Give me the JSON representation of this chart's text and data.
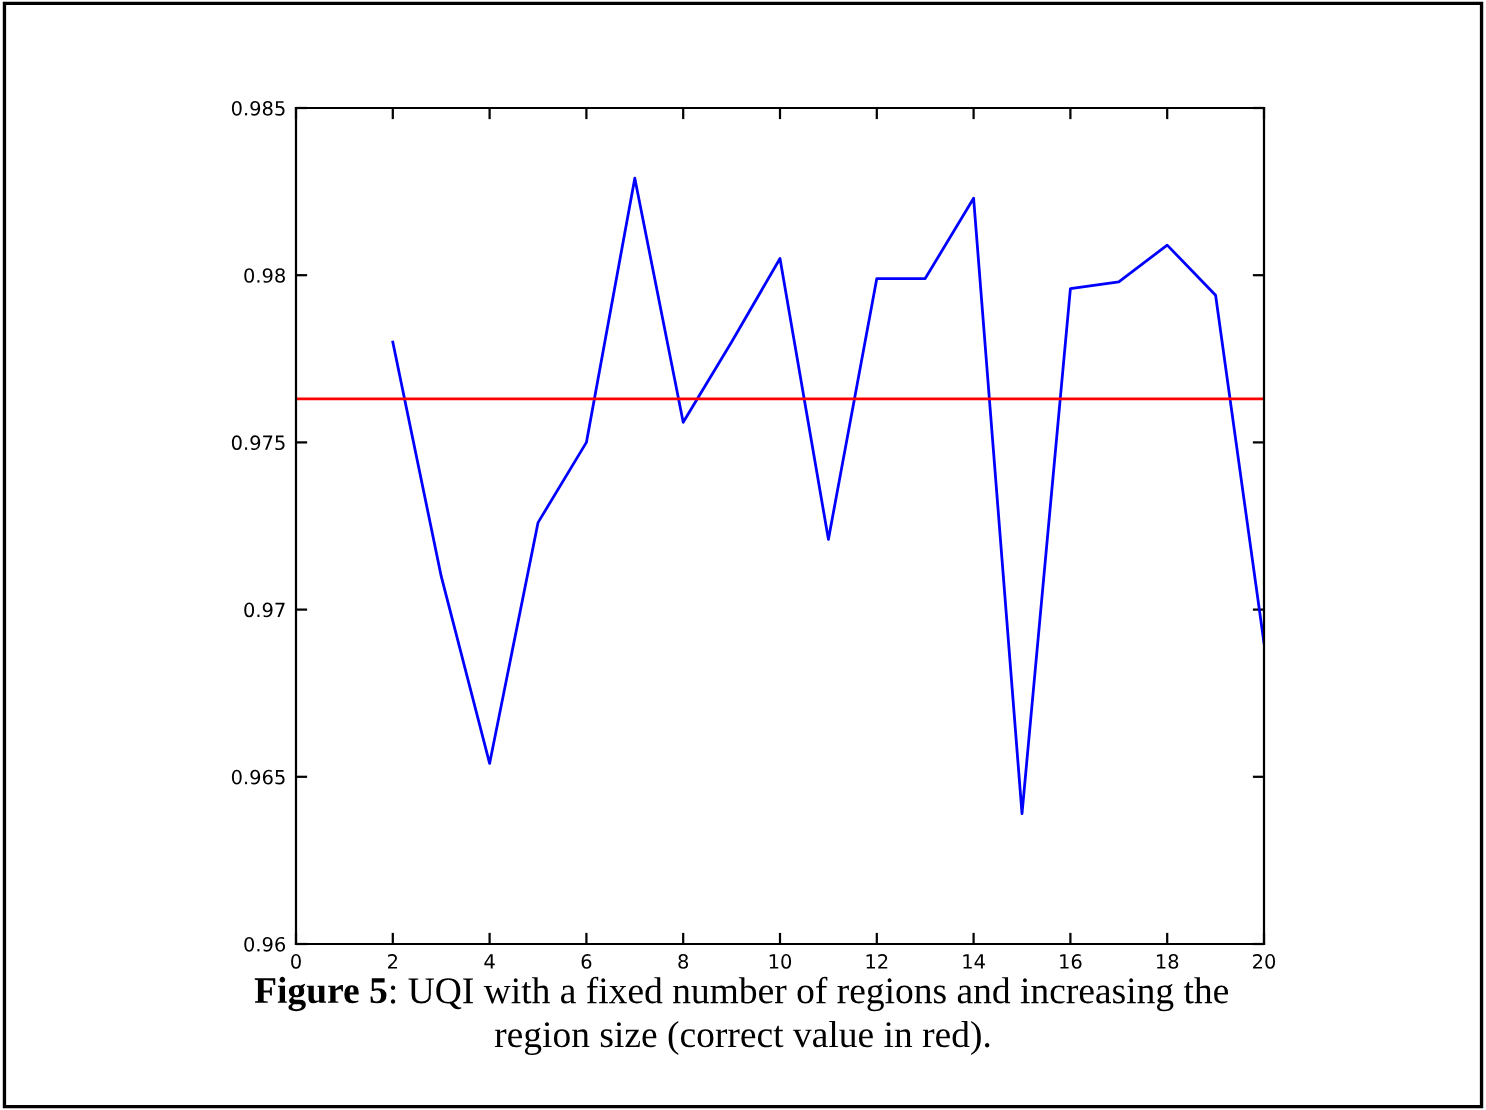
{
  "chart_data": {
    "type": "line",
    "x": [
      2,
      3,
      4,
      5,
      6,
      7,
      8,
      9,
      10,
      11,
      12,
      13,
      14,
      15,
      16,
      17,
      18,
      19,
      20
    ],
    "series": [
      {
        "color": "#0000ff",
        "values": [
          0.978,
          0.971,
          0.9654,
          0.9726,
          0.975,
          0.9829,
          0.9756,
          0.978,
          0.9805,
          0.9721,
          0.9799,
          0.9799,
          0.9823,
          0.9639,
          0.9796,
          0.9798,
          0.9809,
          0.9794,
          0.969
        ]
      }
    ],
    "ref_lines": [
      {
        "axis": "y",
        "value": 0.9763,
        "color": "#ff0000"
      }
    ],
    "xlim": [
      0,
      20
    ],
    "xticks": [
      0,
      2,
      4,
      6,
      8,
      10,
      12,
      14,
      16,
      18,
      20
    ],
    "ylim": [
      0.96,
      0.985
    ],
    "yticks": [
      0.96,
      0.965,
      0.97,
      0.975,
      0.98,
      0.985
    ],
    "grid": false,
    "legend": false,
    "marker": "none",
    "line_style": "solid",
    "annotations": [
      "Figure 5: UQI with a fixed number of regions and increasing the\nregion size (correct value in red)."
    ]
  }
}
